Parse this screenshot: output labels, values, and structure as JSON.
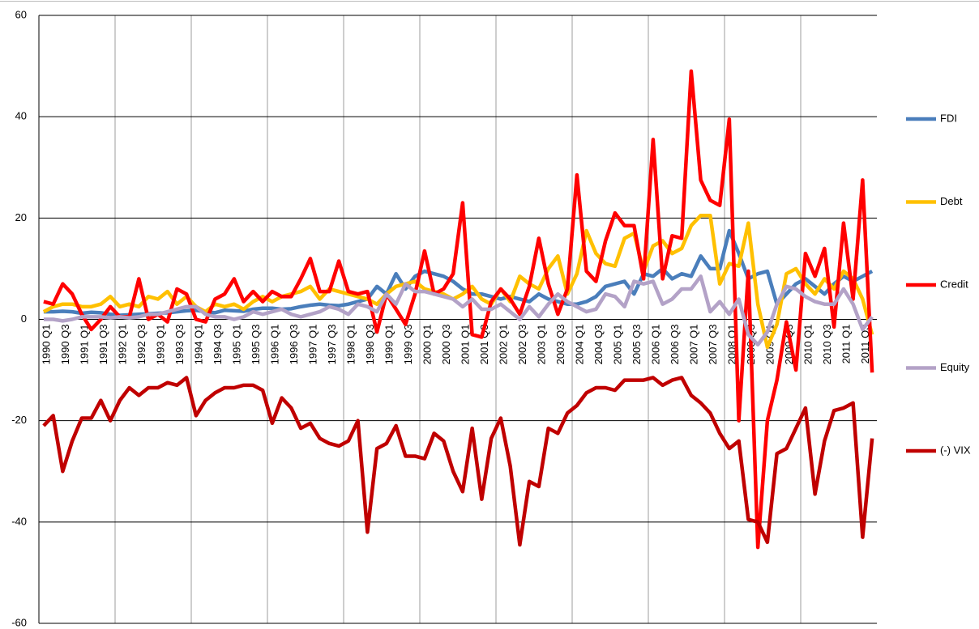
{
  "chart_data": {
    "type": "line",
    "categories": [
      "1990 Q1",
      null,
      "1990 Q3",
      null,
      "1991 Q1",
      null,
      "1991 Q3",
      null,
      "1992 Q1",
      null,
      "1992 Q3",
      null,
      "1993 Q1",
      null,
      "1993 Q3",
      null,
      "1994 Q1",
      null,
      "1994 Q3",
      null,
      "1995 Q1",
      null,
      "1995 Q3",
      null,
      "1996 Q1",
      null,
      "1996 Q3",
      null,
      "1997 Q1",
      null,
      "1997 Q3",
      null,
      "1998 Q1",
      null,
      "1998 Q3",
      null,
      "1999 Q1",
      null,
      "1999 Q3",
      null,
      "2000 Q1",
      null,
      "2000 Q3",
      null,
      "2001 Q1",
      null,
      "2001 Q3",
      null,
      "2002 Q1",
      null,
      "2002 Q3",
      null,
      "2003 Q1",
      null,
      "2003 Q3",
      null,
      "2004 Q1",
      null,
      "2004 Q3",
      null,
      "2005 Q1",
      null,
      "2005 Q3",
      null,
      "2006 Q1",
      null,
      "2006 Q3",
      null,
      "2007 Q1",
      null,
      "2007 Q3",
      null,
      "2008 Q1",
      null,
      "2008 Q3",
      null,
      "2009 Q1",
      null,
      "2009 Q3",
      null,
      "2010 Q1",
      null,
      "2010 Q3",
      null,
      "2011 Q1",
      null,
      "2011 Q3",
      null
    ],
    "series": [
      {
        "name": "FDI",
        "color": "#4a7ebb",
        "values": [
          1.5,
          1.5,
          1.6,
          1.5,
          1.2,
          1.4,
          1.3,
          1.0,
          0.8,
          0.9,
          1.0,
          1.1,
          1.2,
          1.3,
          1.5,
          1.7,
          1.8,
          1.5,
          1.3,
          1.8,
          1.7,
          1.6,
          2.0,
          2.2,
          2.2,
          2.0,
          2.1,
          2.5,
          2.8,
          3.0,
          2.8,
          2.7,
          3.0,
          3.5,
          4.0,
          6.5,
          5.0,
          9.0,
          6.0,
          8.5,
          9.5,
          9.0,
          8.5,
          7.5,
          6.0,
          5.0,
          5.0,
          4.5,
          4.0,
          4.5,
          4.0,
          3.5,
          5.0,
          4.0,
          3.5,
          3.0,
          3.0,
          3.5,
          4.5,
          6.5,
          7.0,
          7.5,
          5.0,
          9.0,
          8.5,
          10.0,
          8.0,
          9.0,
          8.5,
          12.5,
          10.0,
          10.0,
          17.5,
          13.0,
          8.0,
          9.0,
          9.5,
          3.0,
          5.0,
          7.0,
          8.0,
          6.5,
          5.0,
          7.0,
          8.5,
          7.5,
          8.5,
          9.5
        ]
      },
      {
        "name": "Debt",
        "color": "#ffc000",
        "values": [
          1.5,
          2.5,
          3.0,
          3.0,
          2.5,
          2.5,
          3.0,
          4.5,
          2.5,
          3.0,
          2.5,
          4.5,
          4.0,
          5.5,
          3.0,
          4.5,
          2.5,
          1.5,
          3.0,
          2.5,
          3.0,
          2.0,
          3.5,
          4.5,
          3.5,
          4.5,
          5.0,
          5.5,
          6.5,
          4.0,
          6.0,
          5.5,
          5.0,
          4.5,
          4.0,
          3.0,
          5.0,
          6.5,
          7.0,
          7.5,
          6.0,
          5.5,
          5.0,
          4.0,
          5.0,
          6.5,
          4.0,
          3.0,
          6.0,
          3.5,
          8.5,
          7.0,
          6.0,
          10.0,
          12.5,
          5.0,
          9.0,
          17.5,
          13.0,
          11.0,
          10.5,
          16.0,
          17.0,
          9.5,
          14.5,
          15.5,
          13.0,
          14.0,
          18.5,
          20.5,
          20.5,
          7.0,
          11.0,
          10.5,
          19.0,
          3.0,
          -5.5,
          -1.0,
          9.0,
          10.0,
          7.0,
          5.0,
          8.0,
          6.0,
          9.5,
          8.0,
          4.0,
          -3.0
        ]
      },
      {
        "name": "Credit",
        "color": "#ff0000",
        "values": [
          3.5,
          3.0,
          7.0,
          5.0,
          1.0,
          -2.0,
          0.0,
          2.5,
          0.5,
          0.5,
          8.0,
          0.0,
          1.0,
          -0.5,
          6.0,
          5.0,
          0.0,
          -0.5,
          4.0,
          5.0,
          8.0,
          3.5,
          5.5,
          3.5,
          5.5,
          4.5,
          4.5,
          8.0,
          12.0,
          5.5,
          5.5,
          11.5,
          5.5,
          5.0,
          5.5,
          -2.5,
          5.0,
          2.0,
          -1.0,
          5.0,
          13.5,
          5.0,
          6.0,
          9.0,
          23.0,
          -3.0,
          -3.5,
          3.5,
          6.0,
          4.0,
          1.0,
          6.5,
          16.0,
          7.0,
          1.0,
          6.0,
          28.5,
          9.5,
          7.5,
          15.5,
          21.0,
          18.5,
          18.5,
          8.0,
          35.5,
          8.0,
          16.5,
          16.0,
          49.0,
          27.5,
          23.5,
          22.5,
          39.5,
          -20.0,
          9.5,
          -45.0,
          -20.0,
          -12.0,
          -0.5,
          -10.0,
          13.0,
          8.5,
          14.0,
          -1.5,
          19.0,
          4.0,
          27.5,
          -10.5
        ]
      },
      {
        "name": "Equity",
        "color": "#b3a2c7",
        "values": [
          0.0,
          0.0,
          -0.3,
          0.0,
          0.5,
          0.5,
          0.5,
          0.3,
          0.5,
          0.3,
          0.5,
          1.0,
          1.0,
          1.5,
          2.0,
          2.5,
          2.5,
          1.0,
          0.5,
          0.5,
          0.0,
          0.5,
          1.5,
          1.0,
          1.5,
          2.0,
          1.0,
          0.5,
          1.0,
          1.5,
          2.5,
          2.0,
          1.0,
          3.0,
          2.5,
          1.5,
          5.0,
          3.0,
          7.0,
          5.5,
          5.5,
          5.0,
          4.5,
          4.0,
          2.5,
          4.0,
          2.0,
          2.0,
          3.0,
          1.5,
          0.0,
          2.5,
          0.5,
          3.0,
          5.0,
          3.5,
          2.5,
          1.5,
          2.0,
          5.0,
          4.5,
          2.5,
          7.5,
          7.0,
          7.5,
          3.0,
          4.0,
          6.0,
          6.0,
          8.5,
          1.5,
          3.5,
          1.0,
          4.0,
          -3.0,
          -5.0,
          -2.5,
          3.0,
          6.5,
          6.0,
          4.5,
          3.5,
          3.0,
          3.0,
          6.0,
          3.0,
          -2.0,
          0.5
        ]
      },
      {
        "name": "(-) VIX",
        "color": "#c00000",
        "values": [
          -21,
          -19,
          -30,
          -24,
          -19.5,
          -19.5,
          -16,
          -20,
          -16,
          -13.5,
          -15,
          -13.5,
          -13.5,
          -12.5,
          -13,
          -11.5,
          -19,
          -16,
          -14.5,
          -13.5,
          -13.5,
          -13,
          -13,
          -14,
          -20.5,
          -15.5,
          -17.5,
          -21.5,
          -20.5,
          -23.5,
          -24.5,
          -25,
          -24,
          -20,
          -42,
          -25.5,
          -24.5,
          -21,
          -27,
          -27,
          -27.5,
          -22.5,
          -24,
          -30,
          -34,
          -21.5,
          -35.5,
          -23.5,
          -19.5,
          -29,
          -44.5,
          -32,
          -33,
          -21.5,
          -22.5,
          -18.5,
          -17,
          -14.5,
          -13.5,
          -13.5,
          -14,
          -12,
          -12,
          -12,
          -11.5,
          -13,
          -12,
          -11.5,
          -15,
          -16.5,
          -18.5,
          -22.5,
          -25.5,
          -24,
          -39.5,
          -40,
          -44,
          -26.5,
          -25.5,
          -21.5,
          -17.5,
          -34.5,
          -24,
          -18,
          -17.5,
          -16.5,
          -43,
          -23.5
        ]
      }
    ],
    "ylim": [
      -60,
      60
    ],
    "yticks": [
      -60,
      -40,
      -20,
      0,
      20,
      40,
      60
    ],
    "grid": true,
    "legend": "right"
  }
}
